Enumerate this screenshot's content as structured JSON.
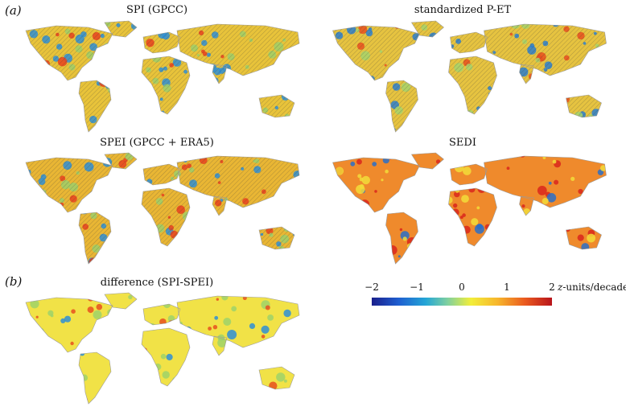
{
  "figure": {
    "panel_a": "(a)",
    "panel_b": "(b)",
    "titles": {
      "spi": "SPI (GPCC)",
      "pet": "standardized P-ET",
      "spei": "SPEI (GPCC + ERA5)",
      "sedi": "SEDI",
      "diff": "difference (SPI-SPEI)"
    }
  },
  "colorbar": {
    "ticks": [
      "−2",
      "−1",
      "0",
      "1",
      "2"
    ],
    "unit_z": "z",
    "unit_rest": "-units/decade",
    "colors": [
      "#1a1f8c",
      "#1f5fd0",
      "#24a6d6",
      "#7fd0a0",
      "#f2ee3a",
      "#f7b52c",
      "#ea5a1f",
      "#b8141b"
    ]
  },
  "maps": {
    "spi": {
      "base": "#e8c33a",
      "patches": [
        [
          "#2f8fd6",
          0.3
        ],
        [
          "#e8421f",
          0.1
        ],
        [
          "#9fcf6a",
          0.2
        ]
      ],
      "hatched": true
    },
    "pet": {
      "base": "#e6c340",
      "patches": [
        [
          "#2a7fd0",
          0.28
        ],
        [
          "#e8501f",
          0.1
        ],
        [
          "#a6d36c",
          0.25
        ]
      ],
      "hatched": true
    },
    "spei": {
      "base": "#e9b634",
      "patches": [
        [
          "#2f8fd6",
          0.22
        ],
        [
          "#e8421f",
          0.2
        ],
        [
          "#9fcf6a",
          0.18
        ]
      ],
      "hatched": true
    },
    "sedi": {
      "base": "#ef8a2c",
      "patches": [
        [
          "#d9261c",
          0.35
        ],
        [
          "#2a6fc8",
          0.12
        ],
        [
          "#f2dc3a",
          0.22
        ]
      ],
      "hatched": false
    },
    "diff": {
      "base": "#f1e247",
      "patches": [
        [
          "#9fd26a",
          0.3
        ],
        [
          "#e8501f",
          0.15
        ],
        [
          "#2f8fd6",
          0.08
        ]
      ],
      "hatched": false
    }
  }
}
